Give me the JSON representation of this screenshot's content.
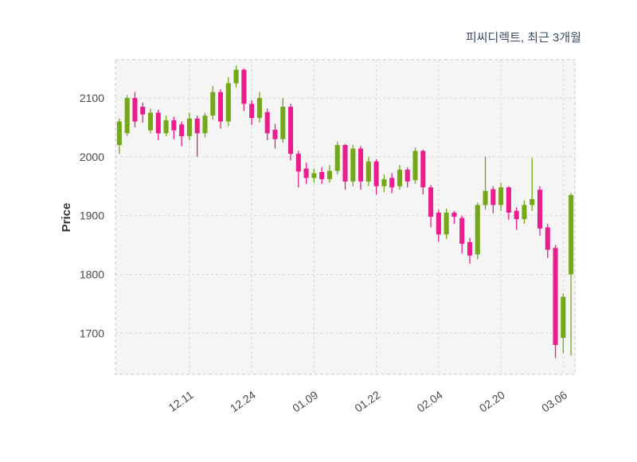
{
  "header": {
    "title": "피씨디렉트, 최근 3개월"
  },
  "colors": {
    "up": "#73a816",
    "down": "#e91e8c",
    "grid": "#d8d8d8",
    "plot_background": "#f5f5f5",
    "title_text": "#3d4c63",
    "tick_text": "#4a4a4a"
  },
  "chart_data": {
    "type": "candlestick",
    "title": "피씨디렉트, 최근 3개월",
    "xlabel": "",
    "ylabel": "Price",
    "ylim": [
      1630,
      2165
    ],
    "grid": "dashed",
    "legend": "none",
    "y_ticks": [
      1700,
      1800,
      1900,
      2000,
      2100
    ],
    "x_ticks": [
      {
        "index": 9,
        "label": "12.11"
      },
      {
        "index": 17,
        "label": "12.24"
      },
      {
        "index": 25,
        "label": "01.09"
      },
      {
        "index": 33,
        "label": "01.22"
      },
      {
        "index": 41,
        "label": "02.04"
      },
      {
        "index": 49,
        "label": "02.20"
      },
      {
        "index": 57,
        "label": "03.06"
      }
    ],
    "ohlc_order": [
      "open",
      "high",
      "low",
      "close"
    ],
    "candles": [
      [
        2020,
        2065,
        2005,
        2060
      ],
      [
        2040,
        2105,
        2035,
        2100
      ],
      [
        2100,
        2110,
        2050,
        2060
      ],
      [
        2085,
        2092,
        2058,
        2072
      ],
      [
        2045,
        2082,
        2040,
        2075
      ],
      [
        2075,
        2080,
        2028,
        2040
      ],
      [
        2040,
        2070,
        2035,
        2062
      ],
      [
        2062,
        2068,
        2030,
        2045
      ],
      [
        2055,
        2060,
        2018,
        2035
      ],
      [
        2035,
        2075,
        2028,
        2065
      ],
      [
        2065,
        2070,
        2000,
        2040
      ],
      [
        2040,
        2075,
        2033,
        2070
      ],
      [
        2070,
        2120,
        2063,
        2110
      ],
      [
        2110,
        2115,
        2048,
        2060
      ],
      [
        2060,
        2135,
        2052,
        2125
      ],
      [
        2125,
        2155,
        2118,
        2148
      ],
      [
        2148,
        2150,
        2078,
        2090
      ],
      [
        2090,
        2096,
        2054,
        2066
      ],
      [
        2066,
        2110,
        2058,
        2100
      ],
      [
        2076,
        2082,
        2028,
        2040
      ],
      [
        2046,
        2056,
        2014,
        2030
      ],
      [
        2030,
        2100,
        2024,
        2085
      ],
      [
        2085,
        2090,
        1994,
        2005
      ],
      [
        2005,
        2010,
        1948,
        1975
      ],
      [
        1980,
        1990,
        1954,
        1964
      ],
      [
        1964,
        1980,
        1956,
        1972
      ],
      [
        1974,
        1982,
        1954,
        1962
      ],
      [
        1962,
        1986,
        1956,
        1976
      ],
      [
        1976,
        2026,
        1970,
        2020
      ],
      [
        2020,
        2022,
        1944,
        1958
      ],
      [
        1958,
        2020,
        1950,
        2014
      ],
      [
        2014,
        2018,
        1944,
        1958
      ],
      [
        1958,
        2000,
        1950,
        1992
      ],
      [
        1992,
        1996,
        1936,
        1950
      ],
      [
        1950,
        1970,
        1940,
        1962
      ],
      [
        1964,
        1972,
        1938,
        1948
      ],
      [
        1950,
        1986,
        1944,
        1978
      ],
      [
        1978,
        1982,
        1948,
        1958
      ],
      [
        1960,
        2016,
        1954,
        2010
      ],
      [
        2010,
        2012,
        1936,
        1948
      ],
      [
        1948,
        1952,
        1880,
        1898
      ],
      [
        1905,
        1910,
        1856,
        1868
      ],
      [
        1868,
        1912,
        1860,
        1905
      ],
      [
        1905,
        1908,
        1886,
        1898
      ],
      [
        1896,
        1900,
        1836,
        1852
      ],
      [
        1855,
        1862,
        1818,
        1832
      ],
      [
        1834,
        1922,
        1826,
        1918
      ],
      [
        1918,
        2000,
        1910,
        1942
      ],
      [
        1945,
        1950,
        1904,
        1918
      ],
      [
        1918,
        1956,
        1908,
        1948
      ],
      [
        1948,
        1950,
        1893,
        1905
      ],
      [
        1908,
        1914,
        1876,
        1894
      ],
      [
        1894,
        1926,
        1886,
        1918
      ],
      [
        1918,
        1998,
        1908,
        1928
      ],
      [
        1944,
        1950,
        1866,
        1878
      ],
      [
        1880,
        1886,
        1828,
        1842
      ],
      [
        1845,
        1850,
        1658,
        1680
      ],
      [
        1692,
        1768,
        1666,
        1762
      ],
      [
        1800,
        1938,
        1662,
        1935
      ]
    ]
  }
}
